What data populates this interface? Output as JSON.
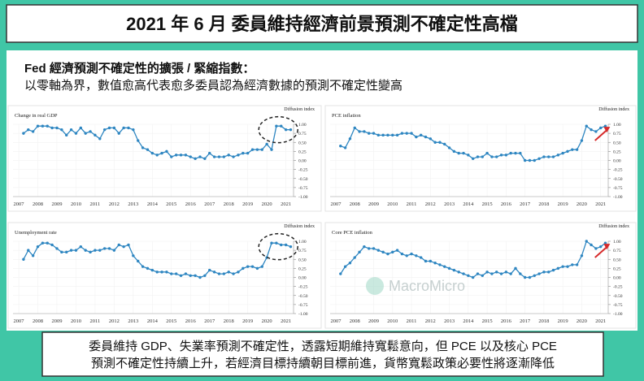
{
  "header": {
    "title": "2021 年 6 月 委員維持經濟前景預測不確定性高檔"
  },
  "subtitle": [
    "Fed 經濟預測不確定性的擴張 / 緊縮指數：",
    "以零軸為界，數值愈高代表愈多委員認為經濟數據的預測不確定性變高"
  ],
  "watermark": "MacroMicro",
  "footer": [
    "委員維持 GDP、失業率預測不確定性，透露短期維持寬鬆意向，但 PCE 以及核心 PCE",
    "預測不確定性持續上升，若經濟目標持續朝目標前進，貨幣寬鬆政策必要性將逐漸降低"
  ],
  "chart_data": [
    {
      "type": "line",
      "title": "Change in real GDP",
      "y_axis_label": "Diffusion index",
      "color": "#2e86c1",
      "grid": true,
      "xlim": [
        2006.7,
        2021.4
      ],
      "xticks": [
        2007,
        2008,
        2009,
        2010,
        2011,
        2012,
        2013,
        2014,
        2015,
        2016,
        2017,
        2018,
        2019,
        2020,
        2021
      ],
      "ylim": [
        -1,
        1
      ],
      "yticks": [
        {
          "value": 1,
          "label": "1.00"
        },
        {
          "value": 0.75,
          "label": "0.75"
        },
        {
          "value": 0.5,
          "label": "0.50"
        },
        {
          "value": 0.25,
          "label": "0.25"
        },
        {
          "value": 0,
          "label": "0.00"
        },
        {
          "value": -0.25,
          "label": "-0.25"
        },
        {
          "value": -0.5,
          "label": "-0.50"
        },
        {
          "value": -0.75,
          "label": "-0.75"
        },
        {
          "value": -1,
          "label": "-1.00"
        }
      ],
      "x": [
        2007.25,
        2007.5,
        2007.75,
        2008,
        2008.25,
        2008.5,
        2008.75,
        2009,
        2009.25,
        2009.5,
        2009.75,
        2010,
        2010.25,
        2010.5,
        2010.75,
        2011,
        2011.25,
        2011.5,
        2011.75,
        2012,
        2012.25,
        2012.5,
        2012.75,
        2013,
        2013.25,
        2013.5,
        2013.75,
        2014,
        2014.25,
        2014.5,
        2014.75,
        2015,
        2015.25,
        2015.5,
        2015.75,
        2016,
        2016.25,
        2016.5,
        2016.75,
        2017,
        2017.25,
        2017.5,
        2017.75,
        2018,
        2018.25,
        2018.5,
        2018.75,
        2019,
        2019.25,
        2019.5,
        2019.75,
        2020,
        2020.25,
        2020.5,
        2020.75,
        2021,
        2021.25
      ],
      "values": [
        0.75,
        0.85,
        0.8,
        0.95,
        0.95,
        0.95,
        0.9,
        0.9,
        0.85,
        0.7,
        0.85,
        0.75,
        0.9,
        0.75,
        0.8,
        0.7,
        0.6,
        0.85,
        0.9,
        0.9,
        0.75,
        0.9,
        0.9,
        0.85,
        0.55,
        0.35,
        0.3,
        0.2,
        0.15,
        0.2,
        0.25,
        0.1,
        0.15,
        0.15,
        0.15,
        0.1,
        0.05,
        0.1,
        0.05,
        0.2,
        0.1,
        0.1,
        0.1,
        0.15,
        0.1,
        0.15,
        0.2,
        0.2,
        0.3,
        0.3,
        0.3,
        0.45,
        0.3,
        0.95,
        0.95,
        0.85,
        0.85
      ]
    },
    {
      "type": "line",
      "title": "PCE inflation",
      "y_axis_label": "Diffusion index",
      "color": "#2e86c1",
      "grid": true,
      "xlim": [
        2006.7,
        2021.4
      ],
      "xticks": [
        2007,
        2008,
        2009,
        2010,
        2011,
        2012,
        2013,
        2014,
        2015,
        2016,
        2017,
        2018,
        2019,
        2020,
        2021
      ],
      "ylim": [
        -1,
        1
      ],
      "yticks": [
        {
          "value": 1,
          "label": "1.00"
        },
        {
          "value": 0.75,
          "label": "0.75"
        },
        {
          "value": 0.5,
          "label": "0.50"
        },
        {
          "value": 0.25,
          "label": "0.25"
        },
        {
          "value": 0,
          "label": "0.00"
        },
        {
          "value": -0.25,
          "label": "-0.25"
        },
        {
          "value": -0.5,
          "label": "-0.50"
        },
        {
          "value": -0.75,
          "label": "-0.75"
        },
        {
          "value": -1,
          "label": "-1.00"
        }
      ],
      "x": [
        2007.25,
        2007.5,
        2007.75,
        2008,
        2008.25,
        2008.5,
        2008.75,
        2009,
        2009.25,
        2009.5,
        2009.75,
        2010,
        2010.25,
        2010.5,
        2010.75,
        2011,
        2011.25,
        2011.5,
        2011.75,
        2012,
        2012.25,
        2012.5,
        2012.75,
        2013,
        2013.25,
        2013.5,
        2013.75,
        2014,
        2014.25,
        2014.5,
        2014.75,
        2015,
        2015.25,
        2015.5,
        2015.75,
        2016,
        2016.25,
        2016.5,
        2016.75,
        2017,
        2017.25,
        2017.5,
        2017.75,
        2018,
        2018.25,
        2018.5,
        2018.75,
        2019,
        2019.25,
        2019.5,
        2019.75,
        2020,
        2020.25,
        2020.5,
        2020.75,
        2021,
        2021.25
      ],
      "values": [
        0.4,
        0.35,
        0.6,
        0.9,
        0.8,
        0.8,
        0.75,
        0.75,
        0.7,
        0.7,
        0.7,
        0.7,
        0.7,
        0.75,
        0.75,
        0.75,
        0.65,
        0.7,
        0.65,
        0.6,
        0.5,
        0.5,
        0.45,
        0.35,
        0.25,
        0.2,
        0.2,
        0.15,
        0.05,
        0.1,
        0.1,
        0.2,
        0.1,
        0.1,
        0.15,
        0.15,
        0.2,
        0.2,
        0.2,
        0,
        0,
        0,
        0.05,
        0.1,
        0.1,
        0.1,
        0.15,
        0.2,
        0.25,
        0.3,
        0.3,
        0.55,
        0.95,
        0.85,
        0.8,
        0.9,
        0.95
      ]
    },
    {
      "type": "line",
      "title": "Unemployment rate",
      "y_axis_label": "Diffusion index",
      "color": "#2e86c1",
      "grid": true,
      "xlim": [
        2006.7,
        2021.4
      ],
      "xticks": [
        2007,
        2008,
        2009,
        2010,
        2011,
        2012,
        2013,
        2014,
        2015,
        2016,
        2017,
        2018,
        2019,
        2020,
        2021
      ],
      "ylim": [
        -1,
        1
      ],
      "yticks": [
        {
          "value": 1,
          "label": "1.00"
        },
        {
          "value": 0.75,
          "label": "0.75"
        },
        {
          "value": 0.5,
          "label": "0.50"
        },
        {
          "value": 0.25,
          "label": "0.25"
        },
        {
          "value": 0,
          "label": "0.00"
        },
        {
          "value": -0.25,
          "label": "-0.25"
        },
        {
          "value": -0.5,
          "label": "-0.50"
        },
        {
          "value": -0.75,
          "label": "-0.75"
        },
        {
          "value": -1,
          "label": "-1.00"
        }
      ],
      "x": [
        2007.25,
        2007.5,
        2007.75,
        2008,
        2008.25,
        2008.5,
        2008.75,
        2009,
        2009.25,
        2009.5,
        2009.75,
        2010,
        2010.25,
        2010.5,
        2010.75,
        2011,
        2011.25,
        2011.5,
        2011.75,
        2012,
        2012.25,
        2012.5,
        2012.75,
        2013,
        2013.25,
        2013.5,
        2013.75,
        2014,
        2014.25,
        2014.5,
        2014.75,
        2015,
        2015.25,
        2015.5,
        2015.75,
        2016,
        2016.25,
        2016.5,
        2016.75,
        2017,
        2017.25,
        2017.5,
        2017.75,
        2018,
        2018.25,
        2018.5,
        2018.75,
        2019,
        2019.25,
        2019.5,
        2019.75,
        2020,
        2020.25,
        2020.5,
        2020.75,
        2021,
        2021.25
      ],
      "values": [
        0.5,
        0.75,
        0.6,
        0.85,
        0.95,
        0.95,
        0.9,
        0.8,
        0.7,
        0.7,
        0.75,
        0.75,
        0.85,
        0.75,
        0.7,
        0.75,
        0.75,
        0.8,
        0.8,
        0.75,
        0.9,
        0.85,
        0.9,
        0.6,
        0.45,
        0.3,
        0.25,
        0.2,
        0.15,
        0.15,
        0.15,
        0.1,
        0.1,
        0.05,
        0.1,
        0.05,
        0.05,
        0,
        0.05,
        0.2,
        0.15,
        0.1,
        0.1,
        0.15,
        0.1,
        0.15,
        0.25,
        0.3,
        0.3,
        0.25,
        0.3,
        0.55,
        0.95,
        0.95,
        0.9,
        0.9,
        0.85
      ]
    },
    {
      "type": "line",
      "title": "Core PCE inflation",
      "y_axis_label": "Diffusion index",
      "color": "#2e86c1",
      "grid": true,
      "xlim": [
        2006.7,
        2021.4
      ],
      "xticks": [
        2007,
        2008,
        2009,
        2010,
        2011,
        2012,
        2013,
        2014,
        2015,
        2016,
        2017,
        2018,
        2019,
        2020,
        2021
      ],
      "ylim": [
        -1,
        1
      ],
      "yticks": [
        {
          "value": 1,
          "label": "1.00"
        },
        {
          "value": 0.75,
          "label": "0.75"
        },
        {
          "value": 0.5,
          "label": "0.50"
        },
        {
          "value": 0.25,
          "label": "0.25"
        },
        {
          "value": 0,
          "label": "0.00"
        },
        {
          "value": -0.25,
          "label": "-0.25"
        },
        {
          "value": -0.5,
          "label": "-0.50"
        },
        {
          "value": -0.75,
          "label": "-0.75"
        },
        {
          "value": -1,
          "label": "-1.00"
        }
      ],
      "x": [
        2007.25,
        2007.5,
        2007.75,
        2008,
        2008.25,
        2008.5,
        2008.75,
        2009,
        2009.25,
        2009.5,
        2009.75,
        2010,
        2010.25,
        2010.5,
        2010.75,
        2011,
        2011.25,
        2011.5,
        2011.75,
        2012,
        2012.25,
        2012.5,
        2012.75,
        2013,
        2013.25,
        2013.5,
        2013.75,
        2014,
        2014.25,
        2014.5,
        2014.75,
        2015,
        2015.25,
        2015.5,
        2015.75,
        2016,
        2016.25,
        2016.5,
        2016.75,
        2017,
        2017.25,
        2017.5,
        2017.75,
        2018,
        2018.25,
        2018.5,
        2018.75,
        2019,
        2019.25,
        2019.5,
        2019.75,
        2020,
        2020.25,
        2020.5,
        2020.75,
        2021,
        2021.25
      ],
      "values": [
        0.1,
        0.3,
        0.4,
        0.55,
        0.7,
        0.85,
        0.8,
        0.8,
        0.75,
        0.7,
        0.65,
        0.7,
        0.75,
        0.65,
        0.6,
        0.65,
        0.6,
        0.55,
        0.45,
        0.45,
        0.4,
        0.35,
        0.3,
        0.25,
        0.2,
        0.15,
        0.1,
        0.05,
        0,
        0.1,
        0.05,
        0.15,
        0.1,
        0.15,
        0.1,
        0.15,
        0.1,
        0.25,
        0.1,
        0,
        0,
        0.05,
        0.1,
        0.15,
        0.15,
        0.2,
        0.25,
        0.3,
        0.3,
        0.35,
        0.35,
        0.6,
        1,
        0.9,
        0.8,
        0.85,
        0.95
      ]
    }
  ]
}
